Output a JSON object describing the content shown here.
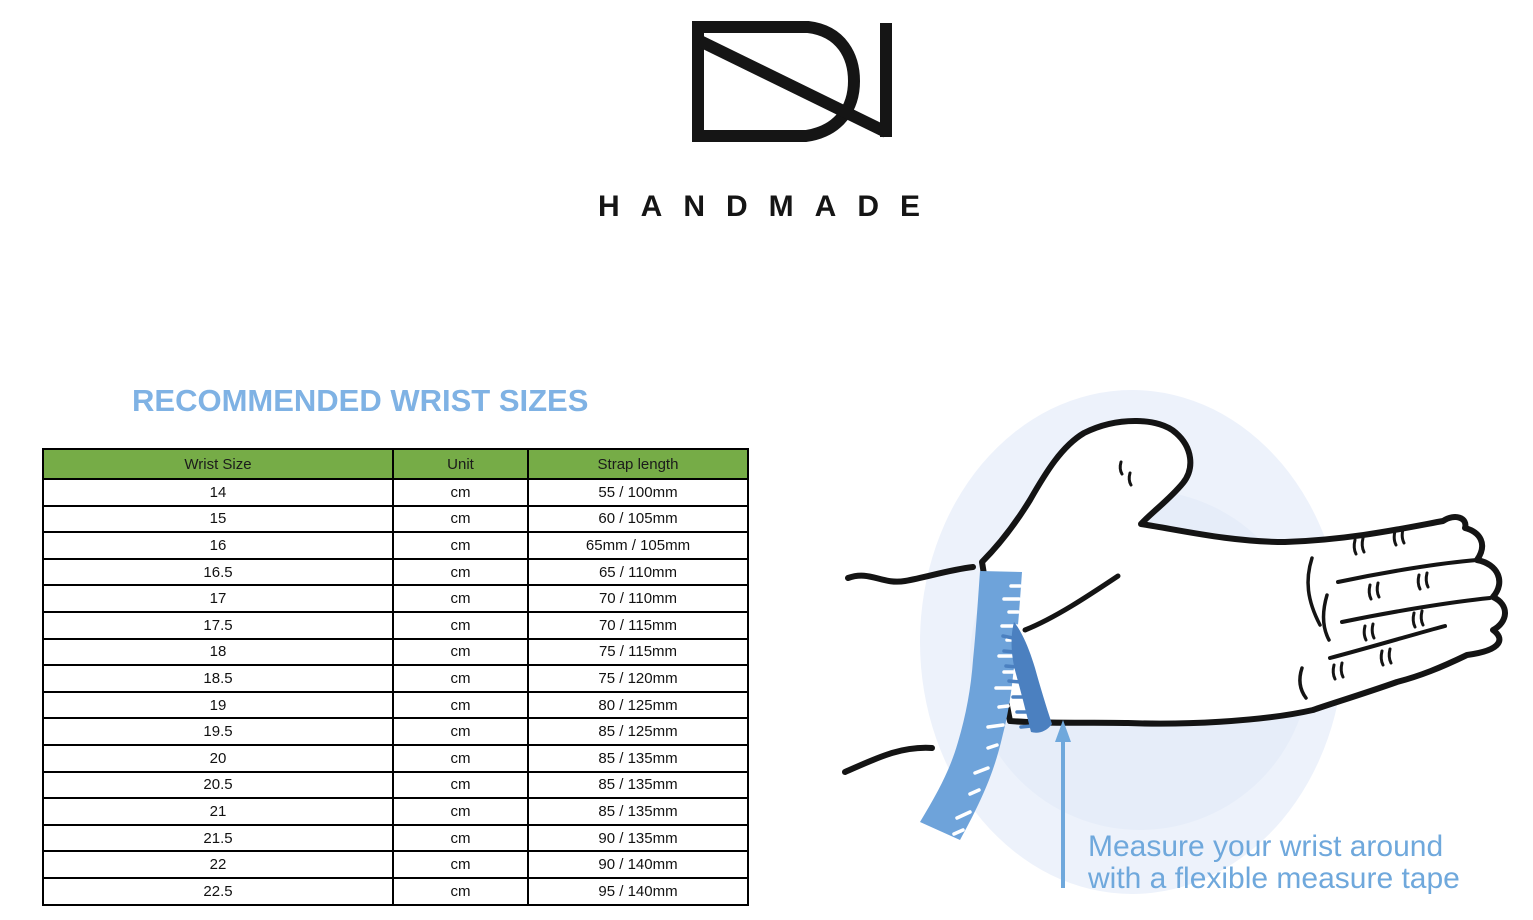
{
  "brand": {
    "monogram": "DN",
    "name": "HANDMADE"
  },
  "section": {
    "title": "RECOMMENDED WRIST SIZES",
    "title_color": "#7FB2E4"
  },
  "table": {
    "headers": [
      "Wrist Size",
      "Unit",
      "Strap length"
    ],
    "header_bg": "#76AC47",
    "rows": [
      [
        "14",
        "cm",
        "55 / 100mm"
      ],
      [
        "15",
        "cm",
        "60 / 105mm"
      ],
      [
        "16",
        "cm",
        "65mm / 105mm"
      ],
      [
        "16.5",
        "cm",
        "65 / 110mm"
      ],
      [
        "17",
        "cm",
        "70 / 110mm"
      ],
      [
        "17.5",
        "cm",
        "70 / 115mm"
      ],
      [
        "18",
        "cm",
        "75 / 115mm"
      ],
      [
        "18.5",
        "cm",
        "75 / 120mm"
      ],
      [
        "19",
        "cm",
        "80 / 125mm"
      ],
      [
        "19.5",
        "cm",
        "85 / 125mm"
      ],
      [
        "20",
        "cm",
        "85 / 135mm"
      ],
      [
        "20.5",
        "cm",
        "85 / 135mm"
      ],
      [
        "21",
        "cm",
        "85 / 135mm"
      ],
      [
        "21.5",
        "cm",
        "90 / 135mm"
      ],
      [
        "22",
        "cm",
        "90 / 140mm"
      ],
      [
        "22.5",
        "cm",
        "95 / 140mm"
      ]
    ]
  },
  "illustration": {
    "caption_line1": "Measure your wrist around",
    "caption_line2": "with a flexible measure tape",
    "caption_color": "#6FA8DC",
    "tape_color": "#6EA3DA",
    "tape_dark_color": "#4B80C0",
    "bg_circle_color": "#EDF2FB",
    "bg_inner_circle_color": "#E6EDF9"
  }
}
